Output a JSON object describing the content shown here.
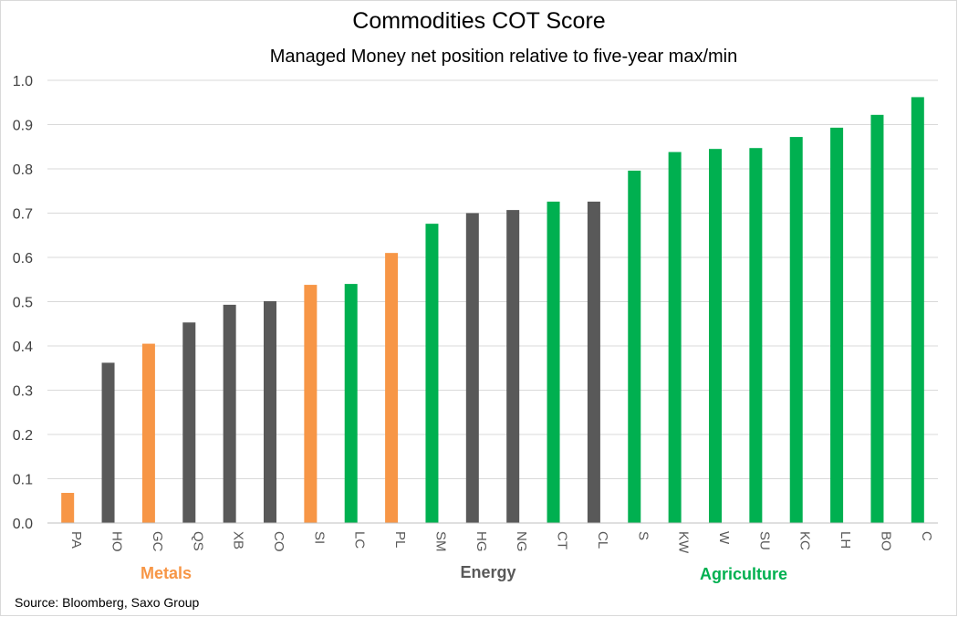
{
  "chart_data": {
    "type": "bar",
    "title": "Commodities COT Score",
    "subtitle": "Managed Money net position relative to five-year max/min",
    "xlabel": "",
    "ylabel": "",
    "ylim": [
      0,
      1.0
    ],
    "yticks": [
      "0.0",
      "0.1",
      "0.2",
      "0.3",
      "0.4",
      "0.5",
      "0.6",
      "0.7",
      "0.8",
      "0.9",
      "1.0"
    ],
    "grid": true,
    "categories": [
      "PA",
      "HO",
      "GC",
      "QS",
      "XB",
      "CO",
      "SI",
      "LC",
      "PL",
      "SM",
      "HG",
      "NG",
      "CT",
      "CL",
      "S",
      "KW",
      "W",
      "SU",
      "KC",
      "LH",
      "BO",
      "C"
    ],
    "values": [
      0.068,
      0.362,
      0.405,
      0.453,
      0.493,
      0.501,
      0.538,
      0.54,
      0.61,
      0.676,
      0.7,
      0.707,
      0.726,
      0.726,
      0.796,
      0.838,
      0.845,
      0.847,
      0.872,
      0.893,
      0.922,
      0.962
    ],
    "groups": [
      "Metals",
      "Energy",
      "Metals",
      "Energy",
      "Energy",
      "Energy",
      "Metals",
      "Agriculture",
      "Metals",
      "Agriculture",
      "Energy",
      "Energy",
      "Agriculture",
      "Energy",
      "Agriculture",
      "Agriculture",
      "Agriculture",
      "Agriculture",
      "Agriculture",
      "Agriculture",
      "Agriculture",
      "Agriculture"
    ],
    "group_labels": [
      {
        "name": "Metals",
        "color": "#f79646"
      },
      {
        "name": "Energy",
        "color": "#595959"
      },
      {
        "name": "Agriculture",
        "color": "#00b050"
      }
    ]
  },
  "source_text": "Source: Bloomberg, Saxo Group"
}
